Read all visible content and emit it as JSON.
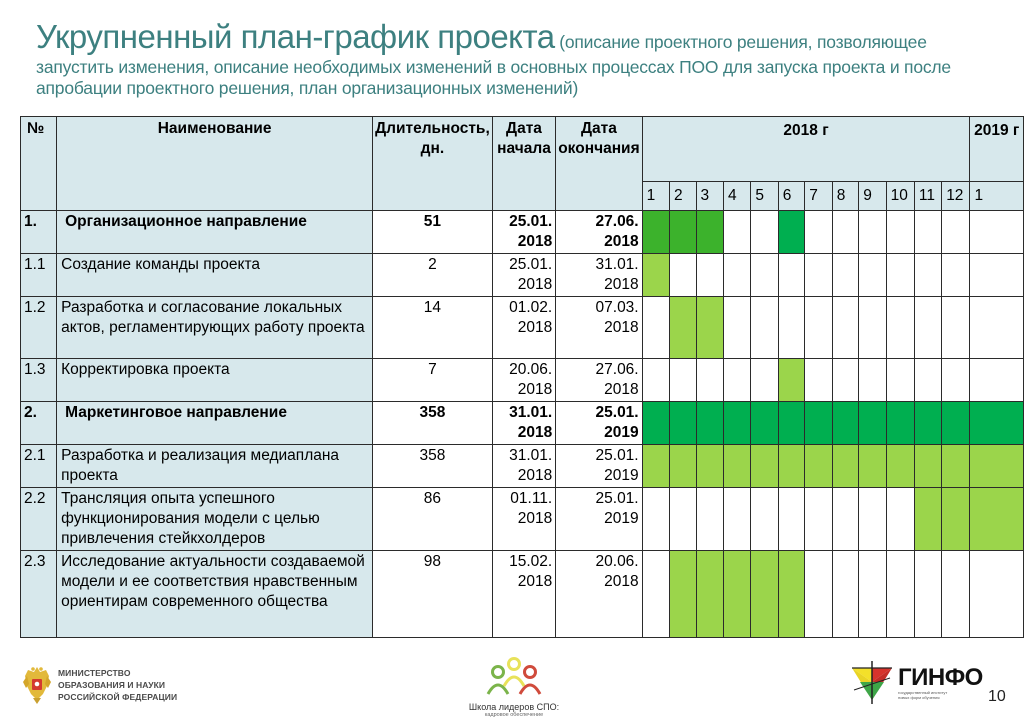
{
  "title": {
    "main": "Укрупненный план-график проекта",
    "sub_line1": " (описание проектного решения, позволяющее",
    "sub_line2": "запустить изменения, описание необходимых изменений в основных процессах ПОО для запуска проекта и после",
    "sub_line3": "апробации проектного решения, план организационных изменений)"
  },
  "table": {
    "headers": {
      "num": "№",
      "name": "Наименование",
      "duration": "Длительность, дн.",
      "start": "Дата начала",
      "end": "Дата окончания",
      "year_2018": "2018 г",
      "year_2019": "2019 г"
    },
    "months": [
      "1",
      "2",
      "3",
      "4",
      "5",
      "6",
      "7",
      "8",
      "9",
      "10",
      "11",
      "12",
      "1"
    ],
    "rows": [
      {
        "num": "1.",
        "name": "Организационное направление",
        "duration": "51",
        "start": "25.01. 2018",
        "end": "27.06. 2018",
        "bold": true,
        "fills": [
          "dark",
          "dark",
          "dark",
          "",
          "",
          "main",
          "",
          "",
          "",
          "",
          "",
          "",
          ""
        ]
      },
      {
        "num": "1.1",
        "name": "Создание  команды проекта",
        "duration": "2",
        "start": "25.01. 2018",
        "end": "31.01. 2018",
        "bold": false,
        "fills": [
          "light",
          "",
          "",
          "",
          "",
          "",
          "",
          "",
          "",
          "",
          "",
          "",
          ""
        ]
      },
      {
        "num": "1.2",
        "name": "Разработка и согласование локальных актов, регламентирующих работу проекта",
        "duration": "14",
        "start": "01.02. 2018",
        "end": "07.03. 2018",
        "bold": false,
        "fills": [
          "",
          "light",
          "light",
          "",
          "",
          "",
          "",
          "",
          "",
          "",
          "",
          "",
          ""
        ]
      },
      {
        "num": "1.3",
        "name": "Корректировка проекта",
        "duration": "7",
        "start": "20.06. 2018",
        "end": "27.06. 2018",
        "bold": false,
        "fills": [
          "",
          "",
          "",
          "",
          "",
          "light",
          "",
          "",
          "",
          "",
          "",
          "",
          ""
        ]
      },
      {
        "num": "2.",
        "name": "Маркетинговое направление",
        "duration": "358",
        "start": "31.01. 2018",
        "end": "25.01. 2019",
        "bold": true,
        "fills": [
          "main",
          "main",
          "main",
          "main",
          "main",
          "main",
          "main",
          "main",
          "main",
          "main",
          "main",
          "main",
          "main"
        ]
      },
      {
        "num": "2.1",
        "name": "Разработка и реализация медиаплана проекта",
        "duration": "358",
        "start": "31.01. 2018",
        "end": "25.01. 2019",
        "bold": false,
        "fills": [
          "light",
          "light",
          "light",
          "light",
          "light",
          "light",
          "light",
          "light",
          "light",
          "light",
          "light",
          "light",
          "light"
        ]
      },
      {
        "num": "2.2",
        "name": "Трансляция опыта успешного функционирования модели с целью привлечения стейкхолдеров",
        "duration": "86",
        "start": "01.11. 2018",
        "end": "25.01. 2019",
        "bold": false,
        "fills": [
          "",
          "",
          "",
          "",
          "",
          "",
          "",
          "",
          "",
          "",
          "light",
          "light",
          "light"
        ]
      },
      {
        "num": "2.3",
        "name": "Исследование актуальности создаваемой модели и ее соответствия нравственным ориентирам современного общества",
        "duration": "98",
        "start": "15.02. 2018",
        "end": "20.06. 2018",
        "bold": false,
        "fills": [
          "",
          "light",
          "light",
          "light",
          "light",
          "light",
          "",
          "",
          "",
          "",
          "",
          "",
          ""
        ]
      }
    ],
    "colors": {
      "header_bg": "#d7e8ec",
      "fill_dark": "#3cb22c",
      "fill_main": "#00af50",
      "fill_light": "#9bd54b",
      "title": "#3d8080"
    }
  },
  "chart_data": {
    "type": "table",
    "title": "Укрупненный план-график проекта",
    "columns": [
      "№",
      "Наименование",
      "Длительность, дн.",
      "Дата начала",
      "Дата окончания",
      "2018-01",
      "2018-02",
      "2018-03",
      "2018-04",
      "2018-05",
      "2018-06",
      "2018-07",
      "2018-08",
      "2018-09",
      "2018-10",
      "2018-11",
      "2018-12",
      "2019-01"
    ],
    "tasks": [
      {
        "id": "1.",
        "name": "Организационное направление",
        "duration_days": 51,
        "start": "25.01.2018",
        "end": "27.06.2018",
        "active_months": [
          1,
          2,
          3,
          6
        ]
      },
      {
        "id": "1.1",
        "name": "Создание команды проекта",
        "duration_days": 2,
        "start": "25.01.2018",
        "end": "31.01.2018",
        "active_months": [
          1
        ]
      },
      {
        "id": "1.2",
        "name": "Разработка и согласование локальных актов, регламентирующих работу проекта",
        "duration_days": 14,
        "start": "01.02.2018",
        "end": "07.03.2018",
        "active_months": [
          2,
          3
        ]
      },
      {
        "id": "1.3",
        "name": "Корректировка проекта",
        "duration_days": 7,
        "start": "20.06.2018",
        "end": "27.06.2018",
        "active_months": [
          6
        ]
      },
      {
        "id": "2.",
        "name": "Маркетинговое направление",
        "duration_days": 358,
        "start": "31.01.2018",
        "end": "25.01.2019",
        "active_months": [
          1,
          2,
          3,
          4,
          5,
          6,
          7,
          8,
          9,
          10,
          11,
          12,
          13
        ]
      },
      {
        "id": "2.1",
        "name": "Разработка и реализация медиаплана проекта",
        "duration_days": 358,
        "start": "31.01.2018",
        "end": "25.01.2019",
        "active_months": [
          1,
          2,
          3,
          4,
          5,
          6,
          7,
          8,
          9,
          10,
          11,
          12,
          13
        ]
      },
      {
        "id": "2.2",
        "name": "Трансляция опыта успешного функционирования модели с целью привлечения стейкхолдеров",
        "duration_days": 86,
        "start": "01.11.2018",
        "end": "25.01.2019",
        "active_months": [
          11,
          12,
          13
        ]
      },
      {
        "id": "2.3",
        "name": "Исследование актуальности создаваемой модели и ее соответствия нравственным ориентирам современного общества",
        "duration_days": 98,
        "start": "15.02.2018",
        "end": "20.06.2018",
        "active_months": [
          2,
          3,
          4,
          5,
          6
        ]
      }
    ]
  },
  "footer": {
    "ministry": {
      "line1": "МИНИСТЕРСТВО",
      "line2": "ОБРАЗОВАНИЯ И НАУКИ",
      "line3": "РОССИЙСКОЙ ФЕДЕРАЦИИ"
    },
    "school": {
      "name": "Школа лидеров СПО:",
      "sub": "кадровое обеспечение"
    },
    "ginfo": {
      "name": "ГИНФО",
      "tag1": "государственный институт",
      "tag2": "новых форм обучения"
    },
    "page_number": "10"
  }
}
